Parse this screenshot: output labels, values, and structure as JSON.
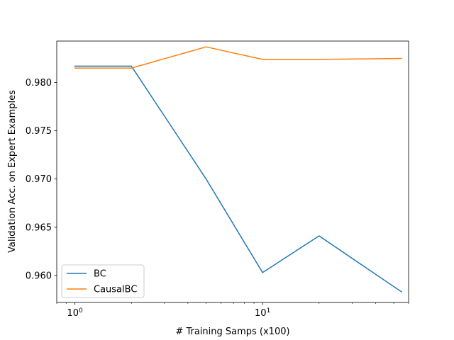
{
  "chart_data": {
    "type": "line",
    "title": "",
    "xlabel": "# Training Samps (x100)",
    "ylabel": "Validation Acc. on Expert Examples",
    "xscale": "log",
    "xlim": [
      0.8,
      60
    ],
    "ylim": [
      0.9572,
      0.9843
    ],
    "x_ticks": [
      {
        "value": 1,
        "base": "10",
        "exp": "0"
      },
      {
        "value": 10,
        "base": "10",
        "exp": "1"
      }
    ],
    "y_ticks": [
      {
        "value": 0.96,
        "label": "0.960"
      },
      {
        "value": 0.965,
        "label": "0.965"
      },
      {
        "value": 0.97,
        "label": "0.970"
      },
      {
        "value": 0.975,
        "label": "0.975"
      },
      {
        "value": 0.98,
        "label": "0.980"
      }
    ],
    "grid": false,
    "legend_position": "lower-left",
    "series": [
      {
        "name": "BC",
        "color": "#1f77b4",
        "x": [
          1,
          2,
          5,
          10,
          20,
          55
        ],
        "y": [
          0.9817,
          0.9817,
          0.97,
          0.9603,
          0.9641,
          0.9583
        ]
      },
      {
        "name": "CausalBC",
        "color": "#ff7f0e",
        "x": [
          1,
          2,
          5,
          10,
          20,
          55
        ],
        "y": [
          0.9815,
          0.9815,
          0.9837,
          0.9824,
          0.9824,
          0.9825
        ]
      }
    ]
  }
}
